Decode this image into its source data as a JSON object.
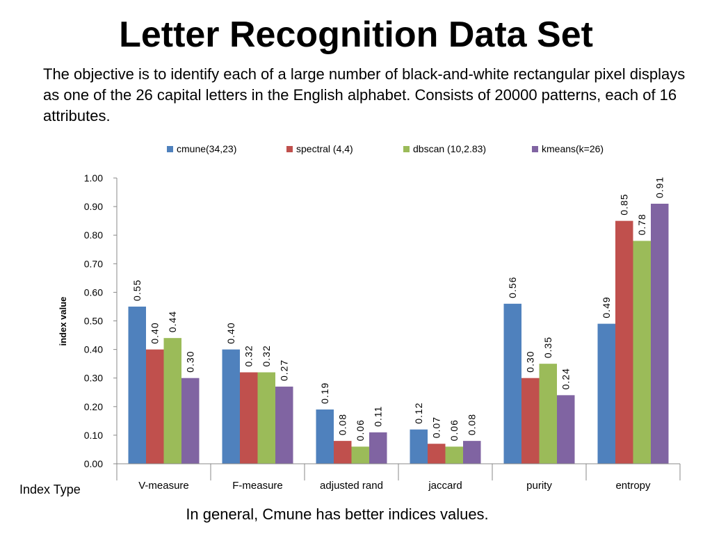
{
  "title": "Letter Recognition Data Set",
  "description": "The objective is to identify each of a large number of black-and-white rectangular pixel displays as one of the 26 capital letters in the English alphabet. Consists of 20000 patterns, each of 16 attributes.",
  "footer": "In general, Cmune has better indices values.",
  "chart_data": {
    "type": "bar",
    "title": "",
    "xlabel": "Index Type",
    "ylabel": "index value",
    "ylim": [
      0,
      1.0
    ],
    "yticks": [
      "0.00",
      "0.10",
      "0.20",
      "0.30",
      "0.40",
      "0.50",
      "0.60",
      "0.70",
      "0.80",
      "0.90",
      "1.00"
    ],
    "legend_position": "top",
    "categories": [
      "V-measure",
      "F-measure",
      "adjusted rand",
      "jaccard",
      "purity",
      "entropy"
    ],
    "series": [
      {
        "name": "cmune(34,23)",
        "color": "#4F81BD",
        "values": [
          0.55,
          0.4,
          0.19,
          0.12,
          0.56,
          0.49
        ]
      },
      {
        "name": "spectral (4,4)",
        "color": "#C0504D",
        "values": [
          0.4,
          0.32,
          0.08,
          0.07,
          0.3,
          0.85
        ]
      },
      {
        "name": "dbscan (10,2.83)",
        "color": "#9BBB59",
        "values": [
          0.44,
          0.32,
          0.06,
          0.06,
          0.35,
          0.78
        ]
      },
      {
        "name": "kmeans(k=26)",
        "color": "#8064A2",
        "values": [
          0.3,
          0.27,
          0.11,
          0.08,
          0.24,
          0.91
        ]
      }
    ]
  }
}
